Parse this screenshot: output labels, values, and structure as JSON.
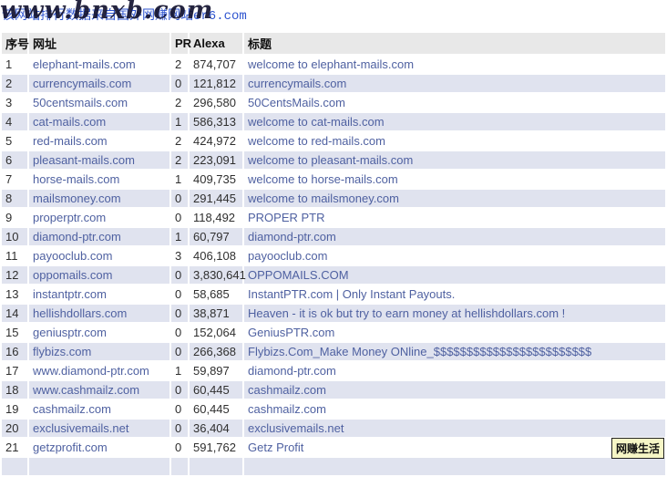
{
  "banner": {
    "text_cn": "该网站排行数据来自国外网赚网站",
    "text_domain": "er6.com",
    "watermark": "www.bnxb.com"
  },
  "badge": {
    "label": "网赚生活"
  },
  "colors": {
    "link": "#4f61a1",
    "row_alt": "#e0e3ef",
    "header_bg": "#e8e8e8",
    "banner_blue": "#2f55cf",
    "badge_bg": "#f6f6c6"
  },
  "table": {
    "columns": [
      "序号",
      "网址",
      "PR",
      "Alexa",
      "标题"
    ],
    "rows": [
      {
        "no": "1",
        "url": "elephant-mails.com",
        "pr": "2",
        "alexa": "874,707",
        "title": "welcome to elephant-mails.com"
      },
      {
        "no": "2",
        "url": "currencymails.com",
        "pr": "0",
        "alexa": "121,812",
        "title": "currencymails.com"
      },
      {
        "no": "3",
        "url": "50centsmails.com",
        "pr": "2",
        "alexa": "296,580",
        "title": "50CentsMails.com"
      },
      {
        "no": "4",
        "url": "cat-mails.com",
        "pr": "1",
        "alexa": "586,313",
        "title": "welcome to cat-mails.com"
      },
      {
        "no": "5",
        "url": "red-mails.com",
        "pr": "2",
        "alexa": "424,972",
        "title": "welcome to red-mails.com"
      },
      {
        "no": "6",
        "url": "pleasant-mails.com",
        "pr": "2",
        "alexa": "223,091",
        "title": "welcome to pleasant-mails.com"
      },
      {
        "no": "7",
        "url": "horse-mails.com",
        "pr": "1",
        "alexa": "409,735",
        "title": "welcome to horse-mails.com"
      },
      {
        "no": "8",
        "url": "mailsmoney.com",
        "pr": "0",
        "alexa": "291,445",
        "title": "welcome to mailsmoney.com"
      },
      {
        "no": "9",
        "url": "properptr.com",
        "pr": "0",
        "alexa": "118,492",
        "title": "PROPER PTR"
      },
      {
        "no": "10",
        "url": "diamond-ptr.com",
        "pr": "1",
        "alexa": "60,797",
        "title": "diamond-ptr.com"
      },
      {
        "no": "11",
        "url": "payooclub.com",
        "pr": "3",
        "alexa": "406,108",
        "title": "payooclub.com"
      },
      {
        "no": "12",
        "url": "oppomails.com",
        "pr": "0",
        "alexa": "3,830,641",
        "title": "OPPOMAILS.COM"
      },
      {
        "no": "13",
        "url": "instantptr.com",
        "pr": "0",
        "alexa": "58,685",
        "title": "InstantPTR.com | Only Instant Payouts."
      },
      {
        "no": "14",
        "url": "hellishdollars.com",
        "pr": "0",
        "alexa": "38,871",
        "title": "Heaven - it is ok but try to earn money at hellishdollars.com !"
      },
      {
        "no": "15",
        "url": "geniusptr.com",
        "pr": "0",
        "alexa": "152,064",
        "title": "GeniusPTR.com"
      },
      {
        "no": "16",
        "url": "flybizs.com",
        "pr": "0",
        "alexa": "266,368",
        "title": "Flybizs.Com_Make Money ONline_$$$$$$$$$$$$$$$$$$$$$$$$"
      },
      {
        "no": "17",
        "url": "www.diamond-ptr.com",
        "pr": "1",
        "alexa": "59,897",
        "title": "diamond-ptr.com"
      },
      {
        "no": "18",
        "url": "www.cashmailz.com",
        "pr": "0",
        "alexa": "60,445",
        "title": "cashmailz.com"
      },
      {
        "no": "19",
        "url": "cashmailz.com",
        "pr": "0",
        "alexa": "60,445",
        "title": "cashmailz.com"
      },
      {
        "no": "20",
        "url": "exclusivemails.net",
        "pr": "0",
        "alexa": "36,404",
        "title": "exclusivemails.net"
      },
      {
        "no": "21",
        "url": "getzprofit.com",
        "pr": "0",
        "alexa": "591,762",
        "title": "Getz Profit"
      }
    ]
  }
}
